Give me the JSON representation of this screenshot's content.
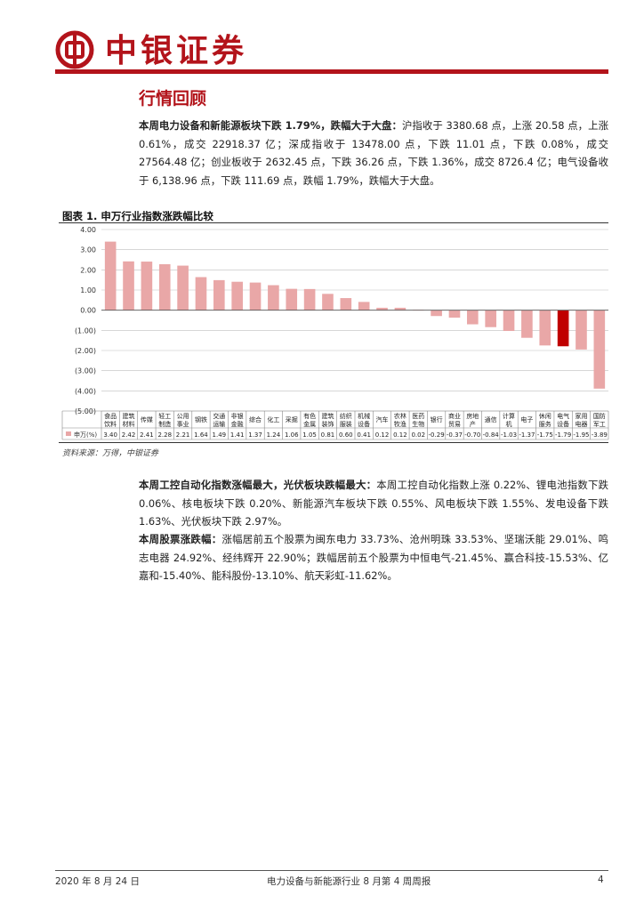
{
  "header": {
    "brand": "中银证券"
  },
  "section": {
    "title": "行情回顾"
  },
  "para1": {
    "lead": "本周电力设备和新能源板块下跌 1.79%，跌幅大于大盘：",
    "body": "沪指收于 3380.68 点，上涨 20.58 点，上涨 0.61%，成交 22918.37 亿；深成指收于 13478.00 点，下跌 11.01 点，下跌 0.08%，成交 27564.48 亿；创业板收于 2632.45 点，下跌 36.26 点，下跌 1.36%，成交 8726.4 亿；电气设备收于 6,138.96 点，下跌 111.69 点，跌幅 1.79%，跌幅大于大盘。"
  },
  "figure": {
    "caption": "图表 1. 申万行业指数涨跌幅比较",
    "source": "资料来源：万得，中银证券"
  },
  "chart_data": {
    "type": "bar",
    "ylim": [
      -5,
      4
    ],
    "yticks": [
      "4.00",
      "3.00",
      "2.00",
      "1.00",
      "0.00",
      "(1.00)",
      "(2.00)",
      "(3.00)",
      "(4.00)",
      "(5.00)"
    ],
    "ytick_values": [
      4,
      3,
      2,
      1,
      0,
      -1,
      -2,
      -3,
      -4,
      -5
    ],
    "series_name": "申万(%)",
    "categories": [
      [
        "食品",
        "饮料"
      ],
      [
        "建筑",
        "材料"
      ],
      [
        "传媒"
      ],
      [
        "轻工",
        "制造"
      ],
      [
        "公用",
        "事业"
      ],
      [
        "钢铁"
      ],
      [
        "交通",
        "运输"
      ],
      [
        "非银",
        "金融"
      ],
      [
        "综合"
      ],
      [
        "化工"
      ],
      [
        "采掘"
      ],
      [
        "有色",
        "金属"
      ],
      [
        "建筑",
        "装饰"
      ],
      [
        "纺织",
        "服装"
      ],
      [
        "机械",
        "设备"
      ],
      [
        "汽车"
      ],
      [
        "农林",
        "牧渔"
      ],
      [
        "医药",
        "生物"
      ],
      [
        "银行"
      ],
      [
        "商业",
        "贸易"
      ],
      [
        "房地",
        "产"
      ],
      [
        "通信"
      ],
      [
        "计算",
        "机"
      ],
      [
        "电子"
      ],
      [
        "休闲",
        "服务"
      ],
      [
        "电气",
        "设备"
      ],
      [
        "家用",
        "电器"
      ],
      [
        "国防",
        "军工"
      ]
    ],
    "values": [
      3.4,
      2.42,
      2.41,
      2.28,
      2.21,
      1.64,
      1.49,
      1.41,
      1.37,
      1.24,
      1.06,
      1.05,
      0.81,
      0.6,
      0.41,
      0.12,
      0.12,
      0.02,
      -0.29,
      -0.37,
      -0.7,
      -0.84,
      -1.03,
      -1.37,
      -1.75,
      -1.79,
      -1.95,
      -3.89
    ],
    "labels": [
      "3.40",
      "2.42",
      "2.41",
      "2.28",
      "2.21",
      "1.64",
      "1.49",
      "1.41",
      "1.37",
      "1.24",
      "1.06",
      "1.05",
      "0.81",
      "0.60",
      "0.41",
      "0.12",
      "0.12",
      "0.02",
      "-0.29",
      "-0.37",
      "-0.70",
      "-0.84",
      "-1.03",
      "-1.37",
      "-1.75",
      "-1.79",
      "-1.95",
      "-3.89"
    ],
    "highlight_index": 25,
    "colors": {
      "bar": "#e9a7a7",
      "highlight": "#c00000",
      "grid": "#bfbfbf",
      "axis": "#555555"
    }
  },
  "para2": {
    "lead": "本周工控自动化指数涨幅最大，光伏板块跌幅最大：",
    "body": "本周工控自动化指数上涨 0.22%、锂电池指数下跌 0.06%、核电板块下跌 0.20%、新能源汽车板块下跌 0.55%、风电板块下跌 1.55%、发电设备下跌 1.63%、光伏板块下跌 2.97%。"
  },
  "para3": {
    "lead": "本周股票涨跌幅：",
    "body": "涨幅居前五个股票为闽东电力 33.73%、沧州明珠 33.53%、坚瑞沃能 29.01%、鸣志电器 24.92%、经纬辉开 22.90%；跌幅居前五个股票为中恒电气-21.45%、赢合科技-15.53%、亿嘉和-15.40%、能科股份-13.10%、航天彩虹-11.62%。"
  },
  "footer": {
    "date": "2020 年 8 月 24 日",
    "title": "电力设备与新能源行业 8 月第 4 周周报",
    "page": "4"
  }
}
